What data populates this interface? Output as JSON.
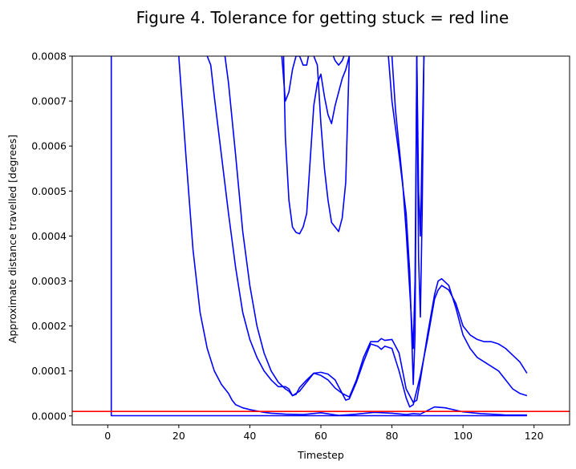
{
  "chart_data": {
    "type": "line",
    "title": "Figure 4. Tolerance for getting stuck = red line",
    "xlabel": "Timestep",
    "ylabel": "Approximate distance travelled [degrees]",
    "xlim": [
      -10,
      130
    ],
    "ylim": [
      -2e-05,
      0.0008
    ],
    "xticks": [
      {
        "value": 0,
        "label": "0"
      },
      {
        "value": 20,
        "label": "20"
      },
      {
        "value": 40,
        "label": "40"
      },
      {
        "value": 60,
        "label": "60"
      },
      {
        "value": 80,
        "label": "80"
      },
      {
        "value": 100,
        "label": "100"
      },
      {
        "value": 120,
        "label": "120"
      }
    ],
    "yticks": [
      {
        "value": 0,
        "label": "0.0000"
      },
      {
        "value": 0.0001,
        "label": "0.0001"
      },
      {
        "value": 0.0002,
        "label": "0.0002"
      },
      {
        "value": 0.0003,
        "label": "0.0003"
      },
      {
        "value": 0.0004,
        "label": "0.0004"
      },
      {
        "value": 0.0005,
        "label": "0.0005"
      },
      {
        "value": 0.0006,
        "label": "0.0006"
      },
      {
        "value": 0.0007,
        "label": "0.0007"
      },
      {
        "value": 0.0008,
        "label": "0.0008"
      }
    ],
    "grid": false,
    "colors": {
      "series": "#0000ff",
      "threshold": "#ff0000"
    },
    "threshold": {
      "y": 1e-05
    },
    "series": [
      {
        "x": [
          1,
          1,
          118
        ],
        "y": [
          0.0008,
          5e-07,
          5e-07
        ]
      },
      {
        "x": [
          20,
          22,
          24,
          26,
          28,
          30,
          32,
          34,
          35,
          36,
          38,
          40,
          42,
          44,
          46,
          48,
          50,
          55,
          60,
          65,
          70,
          75,
          80,
          84,
          86,
          88,
          90,
          92,
          95,
          100,
          105,
          110,
          112,
          118
        ],
        "y": [
          0.0008,
          0.00058,
          0.00037,
          0.00023,
          0.00015,
          0.0001,
          7e-05,
          5e-05,
          3.5e-05,
          2.5e-05,
          1.8e-05,
          1.4e-05,
          1.1e-05,
          8e-06,
          6e-06,
          5e-06,
          4e-06,
          3e-06,
          7e-06,
          1e-06,
          4e-06,
          8e-06,
          6e-06,
          3e-06,
          5e-06,
          4e-06,
          1.2e-05,
          2e-05,
          1.8e-05,
          9e-06,
          5e-06,
          3e-06,
          2e-06,
          2e-06
        ]
      },
      {
        "x": [
          28,
          29,
          30,
          32,
          34,
          36,
          38,
          40,
          42,
          44,
          46,
          48,
          50,
          51,
          52,
          53,
          54,
          56,
          58,
          60,
          62,
          64,
          65,
          66,
          68,
          70,
          72,
          74,
          76,
          77,
          78,
          80,
          82,
          84,
          86,
          87,
          88,
          90,
          92,
          93,
          94,
          96,
          98,
          100,
          102,
          104,
          106,
          108,
          110,
          112,
          114,
          116,
          118
        ],
        "y": [
          0.0008,
          0.00078,
          0.00071,
          0.00058,
          0.00045,
          0.00033,
          0.00023,
          0.00017,
          0.00013,
          0.0001,
          8e-05,
          6.5e-05,
          6.5e-05,
          6e-05,
          4.5e-05,
          4.8e-05,
          6.3e-05,
          8e-05,
          9.5e-05,
          9.7e-05,
          9.3e-05,
          8e-05,
          6.5e-05,
          5e-05,
          4.2e-05,
          8e-05,
          0.00013,
          0.000165,
          0.000165,
          0.000172,
          0.000168,
          0.00017,
          0.00014,
          6e-05,
          3e-05,
          3.5e-05,
          8e-05,
          0.00018,
          0.00027,
          0.0003,
          0.000305,
          0.00029,
          0.00024,
          0.00018,
          0.00015,
          0.00013,
          0.00012,
          0.00011,
          0.0001,
          8e-05,
          6e-05,
          5e-05,
          4.5e-05
        ]
      },
      {
        "x": [
          33,
          34,
          36,
          38,
          40,
          42,
          44,
          46,
          48,
          50,
          51,
          52,
          54,
          56,
          58,
          60,
          62,
          64,
          66,
          67,
          68,
          70,
          72,
          74,
          76,
          77,
          78,
          80,
          82,
          84,
          85,
          86,
          88,
          90,
          92,
          93,
          94,
          96,
          98,
          100,
          102,
          104,
          106,
          108,
          110,
          112,
          114,
          116,
          118
        ],
        "y": [
          0.0008,
          0.00074,
          0.00058,
          0.00041,
          0.00029,
          0.0002,
          0.00014,
          0.0001,
          7.5e-05,
          6e-05,
          5.5e-05,
          4.5e-05,
          5.5e-05,
          7.5e-05,
          9.5e-05,
          9e-05,
          8e-05,
          6.2e-05,
          5e-05,
          3.5e-05,
          3.8e-05,
          7.5e-05,
          0.00012,
          0.00016,
          0.000155,
          0.000148,
          0.000155,
          0.00015,
          0.0001,
          4e-05,
          2e-05,
          2.5e-05,
          9e-05,
          0.00017,
          0.00026,
          0.00028,
          0.00029,
          0.00028,
          0.00025,
          0.0002,
          0.00018,
          0.00017,
          0.000165,
          0.000165,
          0.00016,
          0.00015,
          0.000135,
          0.00012,
          9.5e-05
        ]
      },
      {
        "x": [
          49,
          50,
          51,
          52,
          53,
          54,
          55,
          56,
          56.5
        ],
        "y": [
          0.0008,
          0.0007,
          0.00072,
          0.00077,
          0.0008,
          0.0008,
          0.00078,
          0.00078,
          0.0008
        ]
      },
      {
        "x": [
          49.5,
          50,
          51,
          52,
          53,
          54,
          55,
          56,
          57,
          58,
          59,
          60,
          61,
          62,
          63,
          64,
          65,
          66,
          67,
          68
        ],
        "y": [
          0.0008,
          0.00062,
          0.00048,
          0.00042,
          0.000408,
          0.000405,
          0.00042,
          0.00045,
          0.00057,
          0.00069,
          0.00074,
          0.00076,
          0.00071,
          0.00067,
          0.00065,
          0.00069,
          0.00072,
          0.00075,
          0.00077,
          0.0008
        ]
      },
      {
        "x": [
          58,
          59,
          60,
          61,
          62,
          63,
          64,
          65,
          66,
          67,
          68
        ],
        "y": [
          0.0008,
          0.00078,
          0.00065,
          0.00055,
          0.00048,
          0.00043,
          0.00042,
          0.00041,
          0.00044,
          0.00052,
          0.0008
        ]
      },
      {
        "x": [
          63.5,
          64,
          65,
          66,
          66.5
        ],
        "y": [
          0.0008,
          0.00079,
          0.00078,
          0.00079,
          0.0008
        ]
      },
      {
        "x": [
          79,
          80,
          82,
          84,
          85,
          86,
          86.5,
          87,
          87.5,
          88,
          88.5,
          89
        ],
        "y": [
          0.0008,
          0.0007,
          0.00058,
          0.00045,
          0.00032,
          7e-05,
          0.00018,
          0.0008,
          0.00035,
          0.00022,
          0.00045,
          0.0008
        ]
      },
      {
        "x": [
          80,
          81,
          83,
          84,
          85,
          86,
          86.5,
          87,
          87.5,
          88,
          89
        ],
        "y": [
          0.0008,
          0.00068,
          0.00052,
          0.00041,
          0.00028,
          0.00015,
          0.0003,
          0.0008,
          0.0005,
          0.0004,
          0.0008
        ]
      }
    ]
  }
}
